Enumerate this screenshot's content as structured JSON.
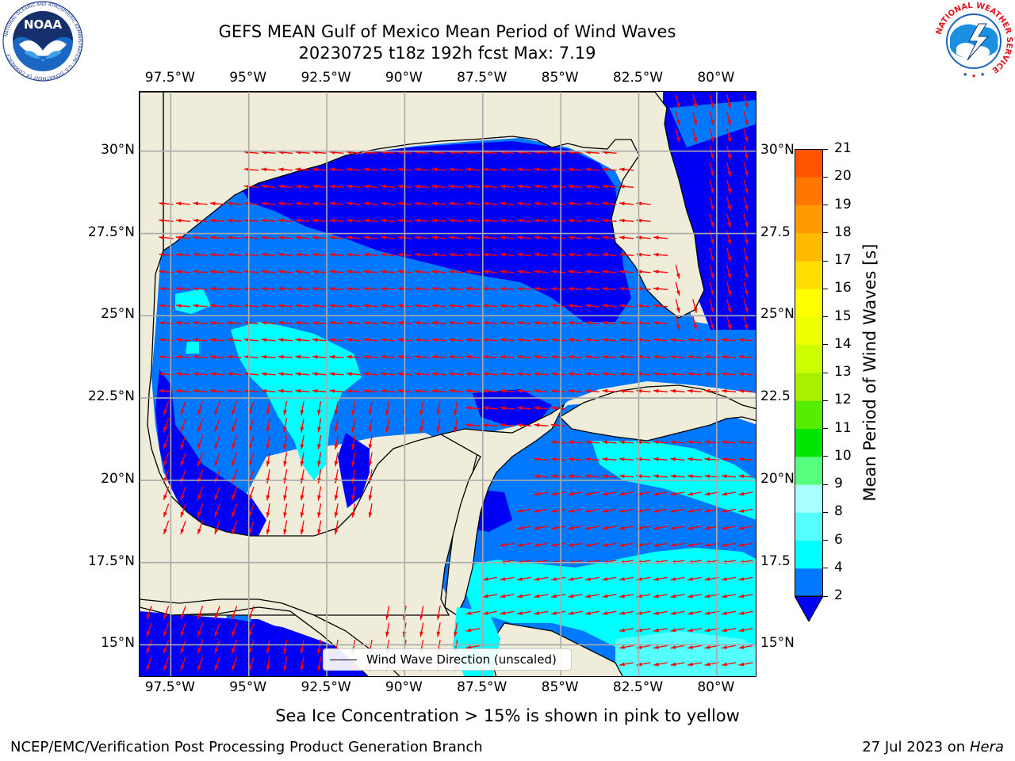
{
  "title": {
    "line1": "GEFS MEAN Gulf of Mexico Mean Period of Wind Waves",
    "line2": "20230725 t18z 192h fcst   Max: 7.19"
  },
  "logos": {
    "left": {
      "icon": "noaa-logo",
      "ring_text": "NATIONAL OCEANIC AND ATMOSPHERIC ADMINISTRATION · U.S. DEPARTMENT OF COMMERCE",
      "center_text": "NOAA"
    },
    "right": {
      "icon": "nws-logo",
      "ring_text": "NATIONAL WEATHER SERVICE"
    }
  },
  "map": {
    "lon_range": [
      -98.5,
      -78.7
    ],
    "lat_range": [
      14.0,
      31.8
    ],
    "lon_ticks": [
      "97.5°W",
      "95°W",
      "92.5°W",
      "90°W",
      "87.5°W",
      "85°W",
      "82.5°W",
      "80°W"
    ],
    "lat_ticks": [
      "30°N",
      "27.5°N",
      "25°N",
      "22.5°N",
      "20°N",
      "17.5°N",
      "15°N"
    ],
    "lat_ticks_right": [
      "30°N",
      "27.5",
      "25°N",
      "22.5",
      "20°N",
      "17.5",
      "15°N"
    ],
    "grid": true,
    "colors": {
      "land": "#efedda",
      "period_lt_2": "#0000f5",
      "period_2_4": "#0078ff",
      "period_4_6": "#00ffff",
      "period_6_8": "#55ffff",
      "arrows": "#ff0000"
    },
    "legend_label": "Wind Wave Direction (unscaled)"
  },
  "colorbar": {
    "title": "Mean Period of Wind Waves [s]",
    "ticks": [
      "2",
      "4",
      "6",
      "8",
      "9",
      "10",
      "11",
      "12",
      "13",
      "14",
      "15",
      "16",
      "17",
      "18",
      "19",
      "20",
      "21"
    ],
    "colors": [
      "#0078ff",
      "#00ffff",
      "#55ffff",
      "#aaffff",
      "#55ff7f",
      "#00e600",
      "#55ee00",
      "#aaee00",
      "#ccff00",
      "#eeff00",
      "#ffff00",
      "#ffdd00",
      "#ffbb00",
      "#ff9900",
      "#ff7700",
      "#ff5500",
      "#ff0000"
    ],
    "under_color": "#0000f5"
  },
  "footer": {
    "subtitle": "Sea Ice Concentration > 15% is shown in pink to yellow",
    "left": "NCEP/EMC/Verification Post Processing Product Generation Branch",
    "right_date": "27 Jul 2023 on ",
    "right_host": "Hera"
  }
}
